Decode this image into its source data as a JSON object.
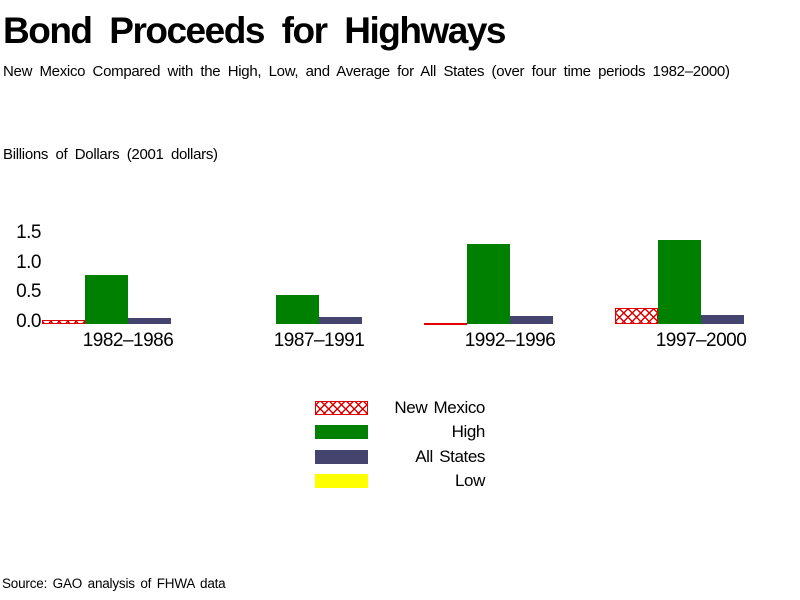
{
  "header": {
    "title": "Bond Proceeds for Highways",
    "subtitle": "New Mexico Compared with the High, Low, and Average for All States (over four time periods 1982–2000)"
  },
  "chart_data": {
    "type": "bar",
    "title": "Bond Proceeds for Highways",
    "ylabel": "Billions of Dollars (2001 dollars)",
    "categories": [
      "1982–1986",
      "1987–1991",
      "1992–1996",
      "1997–2000"
    ],
    "series": [
      {
        "name": "New Mexico",
        "color": "#e00000",
        "pattern": "crosshatch",
        "values": [
          0.07,
          0.0,
          0.02,
          0.27
        ]
      },
      {
        "name": "High",
        "color": "#008000",
        "pattern": "solid",
        "values": [
          0.82,
          0.49,
          1.35,
          1.41
        ]
      },
      {
        "name": "All States",
        "color": "#44446f",
        "pattern": "solid",
        "values": [
          0.1,
          0.11,
          0.13,
          0.16
        ]
      },
      {
        "name": "Low",
        "color": "#ffff00",
        "pattern": "solid",
        "values": [
          0.0,
          0.0,
          0.0,
          0.0
        ]
      }
    ],
    "ytick_labels": [
      "0.0",
      "0.5",
      "1.0",
      "1.5"
    ],
    "yticks": [
      0.0,
      0.5,
      1.0,
      1.5
    ],
    "ylim": [
      0,
      1.5
    ],
    "grid": false,
    "axis_lines": false,
    "legend_position": "bottom-center"
  },
  "footer": {
    "source": "Source: GAO analysis of FHWA data"
  }
}
